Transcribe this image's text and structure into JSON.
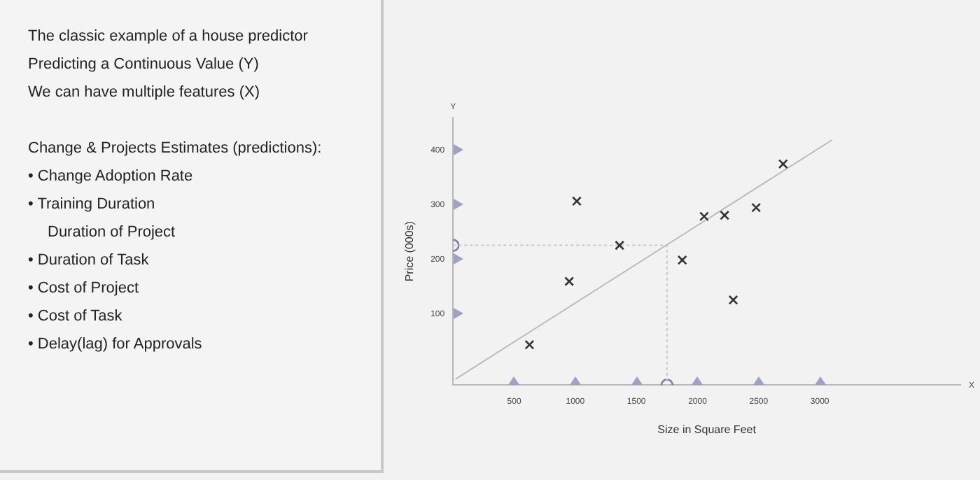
{
  "chart_data": {
    "type": "scatter",
    "xlabel": "Size in Square Feet",
    "ylabel": "Price (000s)",
    "annotations": [
      "The classic example of a house predictor",
      "Predicting a Continuous Value (Y)",
      "We can have multiple features (X)",
      "Change & Projects Estimates (predictions):",
      "• Change Adoption Rate",
      "• Training Duration",
      "Duration of Project",
      "• Duration of Task",
      "• Cost of Project",
      "• Cost of Task",
      "• Delay(lag) for Approvals",
      "Y",
      "X"
    ],
    "xlim": [
      0,
      4150
    ],
    "ylim": [
      -30,
      460
    ],
    "xticks": [
      500,
      1000,
      1500,
      2000,
      2500,
      3000
    ],
    "yticks": [
      100,
      200,
      300,
      400
    ],
    "grid": false,
    "legend": false,
    "series": [
      {
        "marker": "cross",
        "color": "#333333",
        "x": [
          625,
          950,
          1012,
          1362,
          1875,
          2054,
          2221,
          2292,
          2479,
          2700
        ],
        "values": [
          44,
          160,
          307,
          226,
          199,
          279,
          281,
          126,
          295,
          375
        ]
      },
      {
        "type": "line",
        "marker": "none",
        "color": "#bbbbbb",
        "x": [
          20,
          3100
        ],
        "values": [
          -19,
          419
        ]
      },
      {
        "type": "line",
        "marker": "none",
        "line_style": "dotted",
        "color": "#c8c8c8",
        "x": [
          0,
          1750,
          1750
        ],
        "values": [
          226,
          226,
          -30
        ]
      },
      {
        "marker": "circle",
        "color": "#7b7fb0",
        "x": [
          0,
          1750
        ],
        "values": [
          226,
          -30
        ]
      }
    ]
  }
}
